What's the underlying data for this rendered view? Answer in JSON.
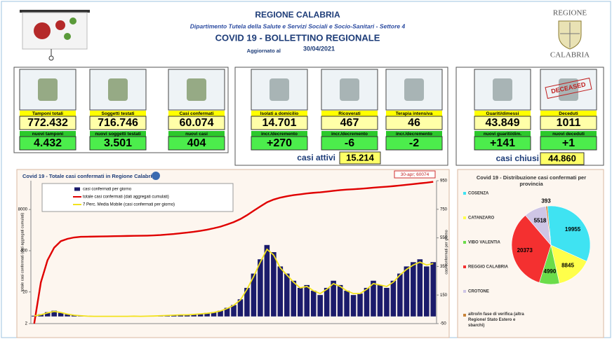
{
  "header": {
    "title": "REGIONE CALABRIA",
    "subtitle": "Dipartimento Tutela della Salute e Servizi Sociali e Socio-Sanitari - Settore 4",
    "bulletin": "COVID 19 - BOLLETTINO REGIONALE",
    "date_label": "Aggiornato al",
    "date": "30/04/2021"
  },
  "logo": {
    "top": "REGIONE",
    "bottom": "CALABRIA"
  },
  "stamp": "DECEASED",
  "cards": [
    {
      "label": "Tamponi totali",
      "value": "772.432",
      "sub_label": "nuovi tamponi",
      "sub_value": "4.432"
    },
    {
      "label": "Soggetti testati",
      "value": "716.746",
      "sub_label": "nuovi soggetti testati",
      "sub_value": "3.501"
    },
    {
      "label": "Casi confermati",
      "value": "60.074",
      "sub_label": "nuovi casi",
      "sub_value": "404"
    },
    {
      "label": "Isolati a domicilio",
      "value": "14.701",
      "sub_label": "incr./decremento",
      "sub_value": "+270"
    },
    {
      "label": "Ricoverati",
      "value": "467",
      "sub_label": "incr./decremento",
      "sub_value": "-6"
    },
    {
      "label": "Terapia intensiva",
      "value": "46",
      "sub_label": "incr./decremento",
      "sub_value": "-2"
    },
    {
      "label": "Guariti/dimessi",
      "value": "43.849",
      "sub_label": "nuovi guariti/dim.",
      "sub_value": "+141"
    },
    {
      "label": "Deceduti",
      "value": "1011",
      "sub_label": "nuovi deceduti",
      "sub_value": "+1"
    }
  ],
  "totals": {
    "active_label": "casi attivi",
    "active_value": "15.214",
    "closed_label": "casi chiusi",
    "closed_value": "44.860"
  },
  "chart_data": [
    {
      "type": "combo",
      "title": "Covid 19 - Totale casi confermati in Regione Calabria",
      "annotation": "30-apr; 60074",
      "y_label": "totale casi confermati (dati aggregati cumulati)",
      "y2_label": "casi confermati per giorno",
      "log_scale": true,
      "ylim": [
        2,
        65000
      ],
      "yticks": [
        2,
        20,
        400,
        8000
      ],
      "y2lim": [
        -50,
        950
      ],
      "y2ticks": [
        -50,
        150,
        350,
        550,
        750,
        950
      ],
      "series": [
        {
          "name": "casi confermati per giorno",
          "kind": "bar",
          "axis": "y2",
          "color": "#1b1b6b",
          "values": [
            5,
            15,
            30,
            40,
            25,
            15,
            8,
            5,
            2,
            1,
            1,
            1,
            0,
            1,
            1,
            2,
            1,
            2,
            3,
            5,
            8,
            10,
            12,
            10,
            15,
            20,
            25,
            30,
            40,
            60,
            80,
            120,
            200,
            300,
            400,
            500,
            450,
            350,
            300,
            250,
            200,
            220,
            180,
            150,
            200,
            250,
            220,
            180,
            150,
            160,
            200,
            250,
            220,
            200,
            250,
            300,
            350,
            380,
            400,
            350,
            380
          ]
        },
        {
          "name": "totale casi confermati (dati aggregati cumulati)",
          "kind": "line",
          "color": "#e00000",
          "values": [
            2,
            40,
            200,
            500,
            800,
            950,
            1050,
            1100,
            1110,
            1120,
            1130,
            1140,
            1150,
            1160,
            1170,
            1180,
            1190,
            1200,
            1220,
            1250,
            1300,
            1350,
            1420,
            1500,
            1580,
            1700,
            1850,
            2050,
            2300,
            2700,
            3200,
            4000,
            5300,
            7300,
            10000,
            13500,
            16500,
            19000,
            21000,
            22800,
            24200,
            25700,
            27000,
            28000,
            29400,
            31100,
            32700,
            34000,
            35000,
            36100,
            37500,
            39200,
            40700,
            42100,
            43800,
            45900,
            48300,
            50900,
            53700,
            56200,
            60074
          ]
        },
        {
          "name": "7 Perc. Media Mobile (casi confermati per giorno)",
          "kind": "line",
          "axis": "y2",
          "color": "#f2e21e",
          "values": [
            4,
            12,
            25,
            35,
            28,
            16,
            9,
            5,
            2,
            1,
            1,
            1,
            1,
            1,
            1,
            2,
            1,
            2,
            3,
            5,
            7,
            9,
            11,
            11,
            14,
            18,
            22,
            28,
            38,
            55,
            78,
            115,
            190,
            280,
            380,
            470,
            430,
            340,
            290,
            240,
            200,
            210,
            180,
            160,
            190,
            230,
            210,
            180,
            160,
            160,
            190,
            230,
            220,
            210,
            240,
            290,
            330,
            360,
            380,
            360,
            370
          ]
        }
      ]
    },
    {
      "type": "pie",
      "title": "Covid 19 - Distribuzione casi confermati per provincia",
      "categories": [
        "COSENZA",
        "CATANZARO",
        "VIBO VALENTIA",
        "REGGIO CALABRIA",
        "CROTONE",
        "altro/in fase di verifica (altra Regione/ Stato Estero e sbarchi)"
      ],
      "values": [
        19955,
        8845,
        4990,
        20373,
        5518,
        393
      ],
      "colors": [
        "#3fe3f2",
        "#ffff4a",
        "#6bdc4a",
        "#f43030",
        "#cfc6e6",
        "#c8843a"
      ]
    }
  ]
}
